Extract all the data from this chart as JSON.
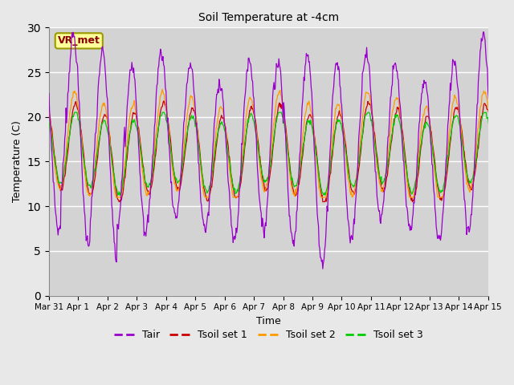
{
  "title": "Soil Temperature at -4cm",
  "xlabel": "Time",
  "ylabel": "Temperature (C)",
  "ylim": [
    0,
    30
  ],
  "background_color": "#e8e8e8",
  "plot_bg_color": "#d3d3d3",
  "annotation_text": "VR_met",
  "annotation_bg": "#ffff99",
  "annotation_border": "#999900",
  "legend_entries": [
    "Tair",
    "Tsoil set 1",
    "Tsoil set 2",
    "Tsoil set 3"
  ],
  "colors": {
    "Tair": "#9900cc",
    "Tsoil1": "#cc0000",
    "Tsoil2": "#ff9900",
    "Tsoil3": "#00cc00"
  },
  "xtick_labels": [
    "Mar 31",
    "Apr 1",
    "Apr 2",
    "Apr 3",
    "Apr 4",
    "Apr 5",
    "Apr 6",
    "Apr 7",
    "Apr 8",
    "Apr 9",
    "Apr 10",
    "Apr 11",
    "Apr 12",
    "Apr 13",
    "Apr 14",
    "Apr 15"
  ],
  "ytick_vals": [
    0,
    5,
    10,
    15,
    20,
    25,
    30
  ]
}
